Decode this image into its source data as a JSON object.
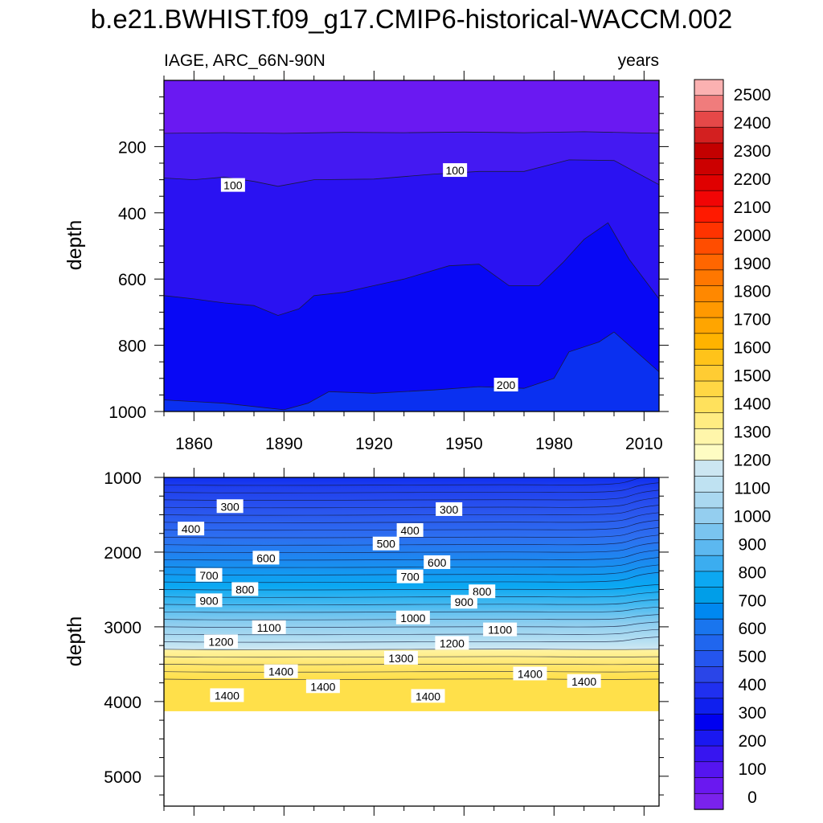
{
  "title": "b.e21.BWHIST.f09_g17.CMIP6-historical-WACCM.002",
  "left_subtitle": "IAGE, ARC_66N-90N",
  "right_subtitle": "years",
  "chart_data": [
    {
      "type": "heatmap",
      "panel": "upper",
      "variable": "IAGE",
      "region": "ARC_66N-90N",
      "units": "years",
      "xlabel": "",
      "ylabel": "depth",
      "xlim": [
        1850,
        2015
      ],
      "ylim": [
        1000,
        0
      ],
      "x_ticks": [
        1860,
        1890,
        1920,
        1950,
        1980,
        2010
      ],
      "y_ticks": [
        200,
        400,
        600,
        800,
        1000
      ],
      "contour_levels": [
        0,
        100,
        200
      ],
      "fill_colors": [
        "#6a19f2",
        "#4419f2",
        "#2a12f2",
        "#0808f5",
        "#0a30f0"
      ],
      "contour_lines": [
        {
          "level": 50,
          "points": [
            [
              1850,
              160
            ],
            [
              1870,
              158
            ],
            [
              1890,
              160
            ],
            [
              1910,
              157
            ],
            [
              1930,
              158
            ],
            [
              1950,
              156
            ],
            [
              1970,
              158
            ],
            [
              1990,
              155
            ],
            [
              2015,
              160
            ]
          ]
        },
        {
          "level": 100,
          "points": [
            [
              1850,
              295
            ],
            [
              1860,
              300
            ],
            [
              1870,
              292
            ],
            [
              1880,
              305
            ],
            [
              1888,
              320
            ],
            [
              1900,
              300
            ],
            [
              1920,
              298
            ],
            [
              1940,
              283
            ],
            [
              1955,
              275
            ],
            [
              1970,
              275
            ],
            [
              1985,
              240
            ],
            [
              2000,
              242
            ],
            [
              2015,
              315
            ]
          ]
        },
        {
          "level": 150,
          "points": [
            [
              1850,
              650
            ],
            [
              1860,
              660
            ],
            [
              1870,
              672
            ],
            [
              1880,
              680
            ],
            [
              1888,
              710
            ],
            [
              1895,
              690
            ],
            [
              1900,
              650
            ],
            [
              1910,
              640
            ],
            [
              1920,
              620
            ],
            [
              1930,
              600
            ],
            [
              1945,
              560
            ],
            [
              1955,
              555
            ],
            [
              1965,
              620
            ],
            [
              1975,
              620
            ],
            [
              1983,
              550
            ],
            [
              1990,
              480
            ],
            [
              1998,
              430
            ],
            [
              2005,
              540
            ],
            [
              2015,
              660
            ]
          ]
        },
        {
          "level": 200,
          "points": [
            [
              1850,
              965
            ],
            [
              1870,
              975
            ],
            [
              1890,
              995
            ],
            [
              1898,
              975
            ],
            [
              1905,
              940
            ],
            [
              1920,
              945
            ],
            [
              1940,
              935
            ],
            [
              1955,
              925
            ],
            [
              1970,
              930
            ],
            [
              1980,
              900
            ],
            [
              1985,
              820
            ],
            [
              1995,
              790
            ],
            [
              2000,
              760
            ],
            [
              2015,
              880
            ]
          ]
        }
      ],
      "labels": [
        {
          "text": "100",
          "x": 1873,
          "y": 317
        },
        {
          "text": "100",
          "x": 1947,
          "y": 272
        },
        {
          "text": "200",
          "x": 1964,
          "y": 920
        }
      ]
    },
    {
      "type": "heatmap",
      "panel": "lower",
      "variable": "IAGE",
      "region": "ARC_66N-90N",
      "units": "years",
      "xlabel": "",
      "ylabel": "depth",
      "xlim": [
        1850,
        2015
      ],
      "ylim": [
        5400,
        1000
      ],
      "y_ticks": [
        1000,
        2000,
        3000,
        4000,
        5000
      ],
      "bathymetry_max_depth": 4130,
      "labels": [
        {
          "text": "300",
          "x": 1872,
          "y": 1390
        },
        {
          "text": "300",
          "x": 1945,
          "y": 1430
        },
        {
          "text": "400",
          "x": 1859,
          "y": 1690
        },
        {
          "text": "400",
          "x": 1932,
          "y": 1710
        },
        {
          "text": "500",
          "x": 1924,
          "y": 1890
        },
        {
          "text": "600",
          "x": 1884,
          "y": 2080
        },
        {
          "text": "600",
          "x": 1941,
          "y": 2140
        },
        {
          "text": "700",
          "x": 1865,
          "y": 2310
        },
        {
          "text": "700",
          "x": 1932,
          "y": 2330
        },
        {
          "text": "800",
          "x": 1877,
          "y": 2500
        },
        {
          "text": "800",
          "x": 1956,
          "y": 2530
        },
        {
          "text": "900",
          "x": 1865,
          "y": 2650
        },
        {
          "text": "900",
          "x": 1950,
          "y": 2670
        },
        {
          "text": "1000",
          "x": 1933,
          "y": 2880
        },
        {
          "text": "1100",
          "x": 1885,
          "y": 3010
        },
        {
          "text": "1100",
          "x": 1962,
          "y": 3040
        },
        {
          "text": "1200",
          "x": 1869,
          "y": 3200
        },
        {
          "text": "1200",
          "x": 1946,
          "y": 3220
        },
        {
          "text": "1300",
          "x": 1929,
          "y": 3420
        },
        {
          "text": "1400",
          "x": 1889,
          "y": 3600
        },
        {
          "text": "1400",
          "x": 1972,
          "y": 3630
        },
        {
          "text": "1400",
          "x": 1990,
          "y": 3730
        },
        {
          "text": "1400",
          "x": 1903,
          "y": 3800
        },
        {
          "text": "1400",
          "x": 1871,
          "y": 3920
        },
        {
          "text": "1400",
          "x": 1938,
          "y": 3930
        }
      ]
    }
  ],
  "colorbar": {
    "labels": [
      "2500",
      "2400",
      "2300",
      "2200",
      "2100",
      "2000",
      "1900",
      "1800",
      "1700",
      "1600",
      "1500",
      "1400",
      "1300",
      "1200",
      "1100",
      "1000",
      "900",
      "800",
      "700",
      "600",
      "500",
      "400",
      "300",
      "200",
      "100",
      "0"
    ],
    "colors_top_to_bottom": [
      "#fbb1b1",
      "#f07c7c",
      "#e54848",
      "#d32020",
      "#c30000",
      "#cc0000",
      "#e00000",
      "#f10505",
      "#ff1a00",
      "#ff3300",
      "#ff4d00",
      "#ff6600",
      "#ff7700",
      "#ff8800",
      "#ff9900",
      "#ffa500",
      "#ffb300",
      "#ffc31a",
      "#ffcc33",
      "#ffd744",
      "#ffe15c",
      "#ffec82",
      "#fff6aa",
      "#fefcc3",
      "#cce6f2",
      "#bfe2f2",
      "#aad8f0",
      "#94ceef",
      "#7ac4ef",
      "#5cb8f0",
      "#3badf0",
      "#0ca8f2",
      "#009ee8",
      "#0088f0",
      "#1975ee",
      "#2066ee",
      "#2455ee",
      "#2a45e8",
      "#2030f0",
      "#0f1fee",
      "#0000f0",
      "#1a18f0",
      "#3715f0",
      "#5515f0",
      "#6a18f0",
      "#7a22ec"
    ]
  }
}
